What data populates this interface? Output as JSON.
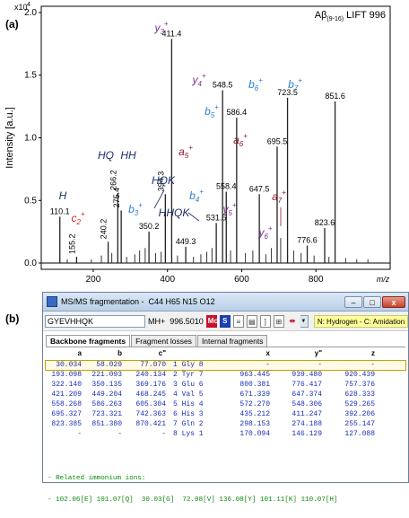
{
  "panel_labels": {
    "a": "(a)",
    "b": "(b)"
  },
  "chart_data": {
    "type": "bar",
    "title": "Aβ(9-16) LIFT 996",
    "title_parts": {
      "main": "Aβ",
      "sub": "(9-16)",
      "rest": " LIFT 996"
    },
    "xlabel": "m/z",
    "ylabel": "Intensity [a.u.]",
    "y_multiplier": "x10",
    "y_multiplier_exp": "4",
    "xlim": [
      60,
      1000
    ],
    "ylim": [
      -0.05,
      2.05
    ],
    "xticks": [
      200,
      400,
      600,
      800
    ],
    "yticks": [
      0.0,
      0.5,
      1.0,
      1.5,
      2.0
    ],
    "ytick_labels": [
      "0.0",
      "0.5",
      "1.0",
      "1.5",
      "2.0"
    ],
    "peaks": [
      {
        "x": 110.1,
        "y": 0.37,
        "label": "110.1"
      },
      {
        "x": 155.2,
        "y": 0.05,
        "label": "155.2"
      },
      {
        "x": 240.2,
        "y": 0.17,
        "label": "240.2"
      },
      {
        "x": 266.2,
        "y": 0.56,
        "label": "266.2"
      },
      {
        "x": 275.4,
        "y": 0.42,
        "label": "275.4"
      },
      {
        "x": 350.2,
        "y": 0.25,
        "label": "350.2"
      },
      {
        "x": 394.3,
        "y": 0.55,
        "label": "394.3"
      },
      {
        "x": 411.4,
        "y": 1.79,
        "label": "411.4"
      },
      {
        "x": 449.3,
        "y": 0.13,
        "label": "449.3"
      },
      {
        "x": 531.5,
        "y": 0.32,
        "label": "531.5"
      },
      {
        "x": 548.5,
        "y": 1.38,
        "label": "548.5"
      },
      {
        "x": 558.4,
        "y": 0.57,
        "label": "558.4"
      },
      {
        "x": 586.4,
        "y": 1.16,
        "label": "586.4"
      },
      {
        "x": 647.5,
        "y": 0.55,
        "label": "647.5"
      },
      {
        "x": 695.5,
        "y": 0.93,
        "label": "695.5"
      },
      {
        "x": 723.5,
        "y": 1.32,
        "label": "723.5"
      },
      {
        "x": 776.6,
        "y": 0.14,
        "label": "776.6"
      },
      {
        "x": 823.6,
        "y": 0.28,
        "label": "823.6"
      },
      {
        "x": 851.6,
        "y": 1.29,
        "label": "851.6"
      }
    ],
    "minor_peaks": [
      {
        "x": 130,
        "y": 0.03
      },
      {
        "x": 195,
        "y": 0.03
      },
      {
        "x": 222,
        "y": 0.06
      },
      {
        "x": 250,
        "y": 0.08
      },
      {
        "x": 290,
        "y": 0.05
      },
      {
        "x": 312,
        "y": 0.07
      },
      {
        "x": 325,
        "y": 0.1
      },
      {
        "x": 340,
        "y": 0.12
      },
      {
        "x": 368,
        "y": 0.08
      },
      {
        "x": 383,
        "y": 0.09
      },
      {
        "x": 427,
        "y": 0.06
      },
      {
        "x": 470,
        "y": 0.05
      },
      {
        "x": 490,
        "y": 0.07
      },
      {
        "x": 506,
        "y": 0.09
      },
      {
        "x": 520,
        "y": 0.12
      },
      {
        "x": 570,
        "y": 0.1
      },
      {
        "x": 610,
        "y": 0.08
      },
      {
        "x": 630,
        "y": 0.1
      },
      {
        "x": 665,
        "y": 0.07
      },
      {
        "x": 680,
        "y": 0.12
      },
      {
        "x": 705,
        "y": 0.2
      },
      {
        "x": 740,
        "y": 0.1
      },
      {
        "x": 760,
        "y": 0.08
      },
      {
        "x": 795,
        "y": 0.06
      },
      {
        "x": 835,
        "y": 0.05
      },
      {
        "x": 880,
        "y": 0.04
      },
      {
        "x": 910,
        "y": 0.03
      },
      {
        "x": 940,
        "y": 0.03
      }
    ],
    "annotations": [
      {
        "ion": "y",
        "sub": "3",
        "text": "y",
        "color": "#7b2d8e"
      },
      {
        "ion": "y",
        "sub": "4",
        "text": "y",
        "color": "#7b2d8e"
      },
      {
        "ion": "y",
        "sub": "5",
        "text": "y",
        "color": "#7b2d8e"
      },
      {
        "ion": "y",
        "sub": "6",
        "text": "y",
        "color": "#7b2d8e"
      },
      {
        "ion": "b",
        "sub": "3",
        "text": "b",
        "color": "#2a7fd0"
      },
      {
        "ion": "b",
        "sub": "4",
        "text": "b",
        "color": "#2a7fd0"
      },
      {
        "ion": "b",
        "sub": "5",
        "text": "b",
        "color": "#2a7fd0"
      },
      {
        "ion": "b",
        "sub": "6",
        "text": "b",
        "color": "#2a7fd0"
      },
      {
        "ion": "b",
        "sub": "7",
        "text": "b",
        "color": "#2a7fd0"
      },
      {
        "ion": "a",
        "sub": "5",
        "text": "a",
        "color": "#8b1a2b"
      },
      {
        "ion": "a",
        "sub": "6",
        "text": "a",
        "color": "#8b1a2b"
      },
      {
        "ion": "a",
        "sub": "7",
        "text": "a",
        "color": "#8b1a2b"
      },
      {
        "ion": "c",
        "sub": "2",
        "text": "c",
        "color": "#d42020"
      },
      {
        "ion": "imm",
        "text": "H",
        "color": "#1c2f6e"
      },
      {
        "ion": "imm",
        "text": "HQ",
        "color": "#1c2f6e"
      },
      {
        "ion": "imm",
        "text": "HH",
        "color": "#1c2f6e"
      },
      {
        "ion": "imm",
        "text": "HQK",
        "color": "#1c2f6e"
      },
      {
        "ion": "imm",
        "text": "HHQK",
        "color": "#1c2f6e"
      }
    ],
    "charge": "+"
  },
  "window": {
    "title": "MS/MS fragmentation -  C44 H65 N15 O12",
    "minimize": "–",
    "maximize": "□",
    "close": "x"
  },
  "toolbar": {
    "sequence_value": "GYEVHHQK",
    "mh_label": "MH+  996.5010",
    "mo_label": "Mo",
    "s_label": "S",
    "charge_select": "3",
    "modifications": "N: Hydrogen - C: Amidation"
  },
  "tabs": [
    "Backbone fragments",
    "Fragment losses",
    "Internal fragments"
  ],
  "table": {
    "headers": [
      "a",
      "b",
      "c\"",
      "",
      "x",
      "y\"",
      "z"
    ],
    "rows": [
      [
        "30.034",
        "58.029",
        "77.070",
        "1 Gly 8",
        "-",
        "-",
        "-"
      ],
      [
        "193.098",
        "221.093",
        "240.134",
        "2 Tyr 7",
        "963.445",
        "939.480",
        "920.439"
      ],
      [
        "322.140",
        "350.135",
        "369.176",
        "3 Glu 6",
        "800.381",
        "776.417",
        "757.376"
      ],
      [
        "421.209",
        "449.204",
        "468.245",
        "4 Val 5",
        "671.339",
        "647.374",
        "628.333"
      ],
      [
        "558.268",
        "586.263",
        "605.304",
        "5 His 4",
        "572.270",
        "548.306",
        "529.265"
      ],
      [
        "695.327",
        "723.321",
        "742.363",
        "6 His 3",
        "435.212",
        "411.247",
        "392.206"
      ],
      [
        "823.385",
        "851.380",
        "870.421",
        "7 Gln 2",
        "298.153",
        "274.188",
        "255.147"
      ],
      [
        "-",
        "-",
        "-",
        "8 Lys 1",
        "170.094",
        "146.129",
        "127.088"
      ]
    ]
  },
  "immonium": {
    "header": "- Related immonium ions:",
    "values": "- 102.06[E] 101.07[Q]  30.03[G]  72.08[V] 136.08[Y] 101.11[K] 110.07[H]"
  }
}
